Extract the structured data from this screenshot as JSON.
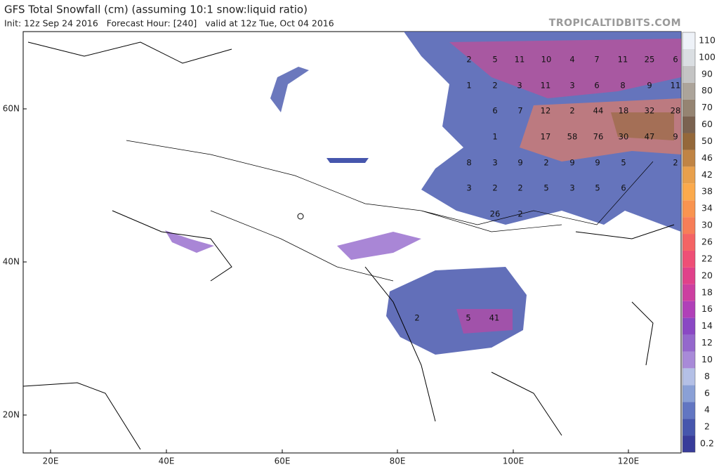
{
  "header": {
    "title": "GFS Total Snowfall (cm) (assuming 10:1 snow:liquid ratio)",
    "subtitle": "Init: 12z Sep 24 2016   Forecast Hour: [240]   valid at 12z Tue, Oct 04 2016",
    "watermark": "TROPICALTIDBITS.COM"
  },
  "map": {
    "lat_labels": [
      "60N",
      "40N",
      "20N"
    ],
    "lon_labels": [
      "20E",
      "40E",
      "60E",
      "80E",
      "100E",
      "120E"
    ],
    "point_labels": [
      2,
      5,
      11,
      10,
      4,
      7,
      11,
      25,
      6,
      1,
      2,
      3,
      11,
      3,
      6,
      8,
      9,
      11,
      6,
      7,
      12,
      2,
      44,
      18,
      32,
      28,
      1,
      17,
      58,
      76,
      30,
      47,
      9,
      8,
      3,
      9,
      2,
      9,
      9,
      5,
      2,
      3,
      2,
      2,
      5,
      3,
      5,
      6,
      26,
      2,
      2,
      5,
      41
    ]
  },
  "colorbar": {
    "levels": [
      0.2,
      2,
      4,
      6,
      8,
      10,
      12,
      14,
      16,
      18,
      20,
      22,
      26,
      30,
      34,
      38,
      42,
      46,
      50,
      60,
      70,
      80,
      90,
      100,
      110
    ],
    "colors": [
      "#383c9a",
      "#4656ad",
      "#6276c2",
      "#8aa0d6",
      "#b4c0e6",
      "#a88ad8",
      "#9468cc",
      "#8a48c4",
      "#b040b8",
      "#cc3fa0",
      "#e0418a",
      "#ee4f76",
      "#f46464",
      "#f77e58",
      "#f99450",
      "#fbaa4c",
      "#e8a04c",
      "#c08444",
      "#94683a",
      "#7a6250",
      "#958472",
      "#aca49a",
      "#c4c4c4",
      "#dadee2",
      "#eef2f8"
    ]
  }
}
